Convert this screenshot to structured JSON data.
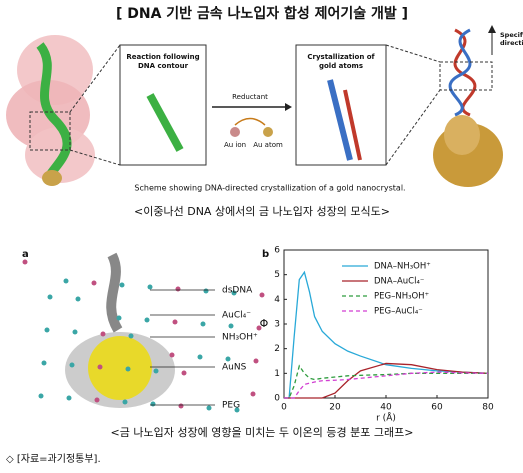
{
  "header": {
    "title": "[ DNA 기반 금속 나노입자 합성 제어기술 개발 ]"
  },
  "scheme": {
    "box1_title": [
      "Reaction following",
      "DNA contour"
    ],
    "reductant": "Reductant",
    "au_ion": "Au ion",
    "au_atom": "Au atom",
    "box2_title": [
      "Crystallization of",
      "gold atoms"
    ],
    "direction": [
      "Specific",
      "direction"
    ],
    "caption": "Scheme showing DNA-directed crystallization of a gold nanocrystal.",
    "korean_caption": "<이중나선 DNA 상에서의 금 나노입자 성장의 모식도>"
  },
  "panel_a": {
    "label": "a",
    "labels": [
      "dsDNA",
      "AuCl₄⁻",
      "NH₃OH⁺",
      "AuNS",
      "PEG"
    ]
  },
  "chart_data": {
    "type": "line",
    "panel_label": "b",
    "y_label": "Φ",
    "x_label": "r (Å)",
    "x": [
      0,
      2,
      4,
      6,
      8,
      10,
      12,
      15,
      20,
      25,
      30,
      40,
      50,
      60,
      70,
      80
    ],
    "series": [
      {
        "name": "DNA–NH₃OH⁺",
        "color": "#29a9d8",
        "dashed": false,
        "values": [
          0,
          0,
          2.5,
          4.8,
          5.1,
          4.3,
          3.3,
          2.7,
          2.2,
          1.9,
          1.7,
          1.35,
          1.2,
          1.1,
          1.05,
          1.0
        ]
      },
      {
        "name": "DNA–AuCl₄⁻",
        "color": "#a8232a",
        "dashed": false,
        "values": [
          0,
          0,
          0,
          0,
          0,
          0,
          0,
          0,
          0.2,
          0.7,
          1.1,
          1.4,
          1.35,
          1.15,
          1.05,
          1.0
        ]
      },
      {
        "name": "PEG–NH₃OH⁺",
        "color": "#2e9c3e",
        "dashed": true,
        "values": [
          0,
          0,
          0.5,
          1.3,
          1.0,
          0.8,
          0.75,
          0.8,
          0.85,
          0.9,
          0.92,
          0.95,
          1.0,
          1.0,
          1.0,
          1.0
        ]
      },
      {
        "name": "PEG–AuCl₄⁻",
        "color": "#d23fd2",
        "dashed": true,
        "values": [
          0,
          0,
          0,
          0.3,
          0.55,
          0.6,
          0.65,
          0.7,
          0.72,
          0.75,
          0.8,
          0.9,
          1.0,
          1.05,
          1.02,
          1.0
        ]
      }
    ],
    "xlim": [
      0,
      80
    ],
    "xticks": [
      0,
      20,
      40,
      60,
      80
    ],
    "ylim": [
      0,
      6
    ],
    "yticks": [
      0,
      1,
      2,
      3,
      4,
      5,
      6
    ]
  },
  "figure_caption": "<금 나노입자 성장에 영향을 미치는 두 이온의 등경 분포 그래프>",
  "source": "◇ [자료=과기정통부]."
}
